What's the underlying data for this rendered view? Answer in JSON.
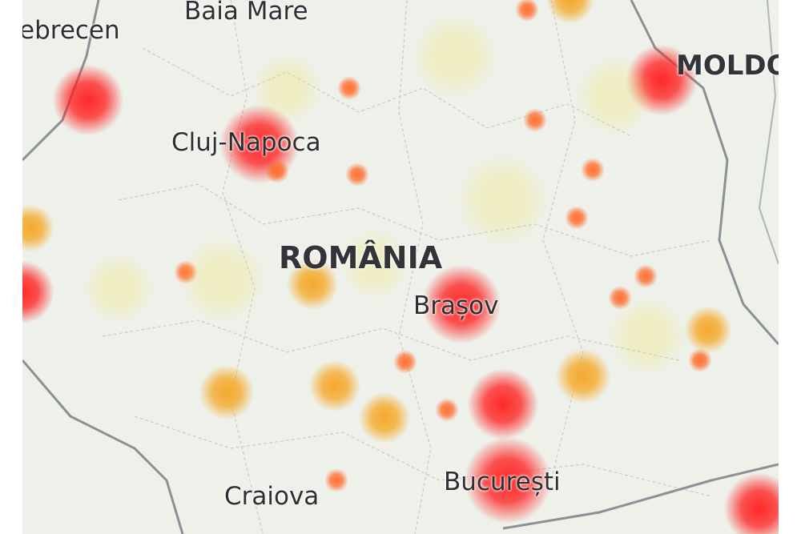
{
  "map": {
    "labels": {
      "debrecen": "ebrecen",
      "baia_mare": "Baia Mare",
      "cluj": "Cluj-Napoca",
      "romania": "ROMÂNIA",
      "brasov": "Brașov",
      "bucuresti": "București",
      "craiova": "Craiova",
      "moldova": "MOLDO"
    },
    "colors": {
      "high": "#ff1e1e",
      "medium": "#ff6a2a",
      "low": "#f5a623",
      "faint": "#f0e36a",
      "land": "#eef1ea",
      "border": "#8c9096"
    }
  }
}
